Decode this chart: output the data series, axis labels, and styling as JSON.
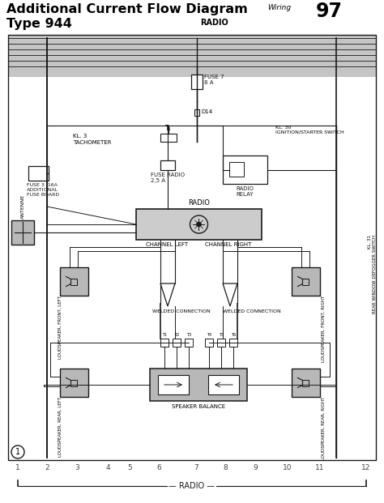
{
  "title_line1": "Additional Current Flow Diagram",
  "title_line2": "Type 944",
  "wiring_label": "Wiring",
  "page_number": "97",
  "radio_label_top": "RADIO",
  "radio_label_bottom": "RADIO",
  "bg_color": "#ffffff",
  "line_color": "#1a1a1a",
  "gray_fill": "#aaaaaa",
  "light_gray": "#cccccc",
  "mid_gray": "#b8b8b8",
  "column_numbers": [
    "1",
    "2",
    "3",
    "4",
    "5",
    "6",
    "7",
    "8",
    "9",
    "10",
    "11",
    "12"
  ],
  "labels": {
    "fuse_board": "FUSE 3  16A\nADDITIONAL\nFUSE BOARD",
    "fuse_radio": "FUSE RADIO\n2,5 A",
    "radio_relay": "RADIO\nRELAY",
    "tachometer": "KL. 3\nTACHOMETER",
    "ignition": "KL. 30\nIGNITION/STARTER SWITCH",
    "radio": "RADIO",
    "channel_left": "CHANNEL LEFT",
    "channel_right": "CHANNEL RIGHT",
    "welded_left": "WELDED CONNECTION",
    "welded_right": "WELDED CONNECTION",
    "speaker_balance": "SPEAKER BALANCE",
    "ls_front_left": "LOUDSPEAKER, FRONT, LEFT",
    "ls_front_right": "LOUDSPEAKER, FRONT, RIGHT",
    "ls_rear_left": "LOUDSPEAKER, REAR, LEFT",
    "ls_rear_right": "LOUDSPEAKER, REAR, RIGHT",
    "antenna": "ANTENNE",
    "kl31": "KL. 31\nREAR WINDOW DEFOGGER SWITCH",
    "fuse7": "FUSE 7\n8 A",
    "circle_num": "1",
    "d14": "D14"
  }
}
